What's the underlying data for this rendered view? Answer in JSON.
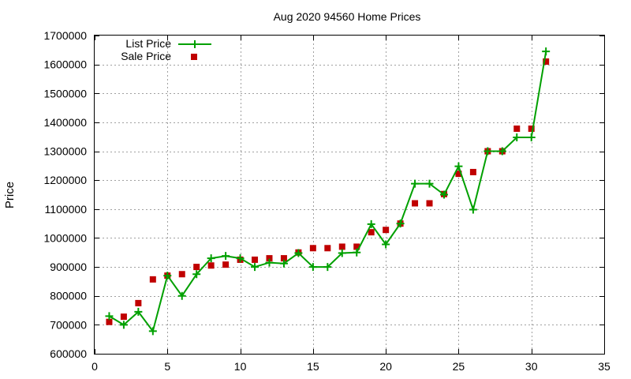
{
  "chart_data": {
    "type": "line",
    "title": "Aug 2020 94560 Home Prices",
    "xlabel": "",
    "ylabel": "Price",
    "xlim": [
      0,
      35
    ],
    "ylim": [
      600000,
      1700000
    ],
    "xticks": [
      0,
      5,
      10,
      15,
      20,
      25,
      30,
      35
    ],
    "yticks": [
      600000,
      700000,
      800000,
      900000,
      1000000,
      1100000,
      1200000,
      1300000,
      1400000,
      1500000,
      1600000,
      1700000
    ],
    "grid": true,
    "legend_position": "top-left",
    "series": [
      {
        "name": "List Price",
        "style": "line+plus",
        "color": "#00a000",
        "x": [
          1,
          2,
          3,
          4,
          5,
          6,
          7,
          8,
          9,
          10,
          11,
          12,
          13,
          14,
          15,
          16,
          17,
          18,
          19,
          20,
          21,
          22,
          23,
          24,
          25,
          26,
          27,
          28,
          29,
          30,
          31
        ],
        "y": [
          730000,
          700000,
          745000,
          678000,
          870000,
          800000,
          875000,
          930000,
          938000,
          930000,
          900000,
          915000,
          912000,
          948000,
          900000,
          900000,
          948000,
          950000,
          1048000,
          978000,
          1050000,
          1188000,
          1188000,
          1150000,
          1248000,
          1098000,
          1300000,
          1300000,
          1348000,
          1348000,
          1645000
        ]
      },
      {
        "name": "Sale Price",
        "style": "square",
        "color": "#c00000",
        "x": [
          1,
          2,
          3,
          4,
          5,
          6,
          7,
          8,
          9,
          10,
          11,
          12,
          13,
          14,
          15,
          16,
          17,
          18,
          19,
          20,
          21,
          22,
          23,
          24,
          25,
          26,
          27,
          28,
          29,
          30,
          31
        ],
        "y": [
          710000,
          728000,
          775000,
          857000,
          870000,
          875000,
          900000,
          905000,
          908000,
          925000,
          925000,
          930000,
          930000,
          950000,
          965000,
          965000,
          970000,
          970000,
          1020000,
          1028000,
          1050000,
          1120000,
          1120000,
          1152000,
          1222000,
          1228000,
          1300000,
          1300000,
          1378000,
          1378000,
          1610000
        ]
      }
    ]
  }
}
